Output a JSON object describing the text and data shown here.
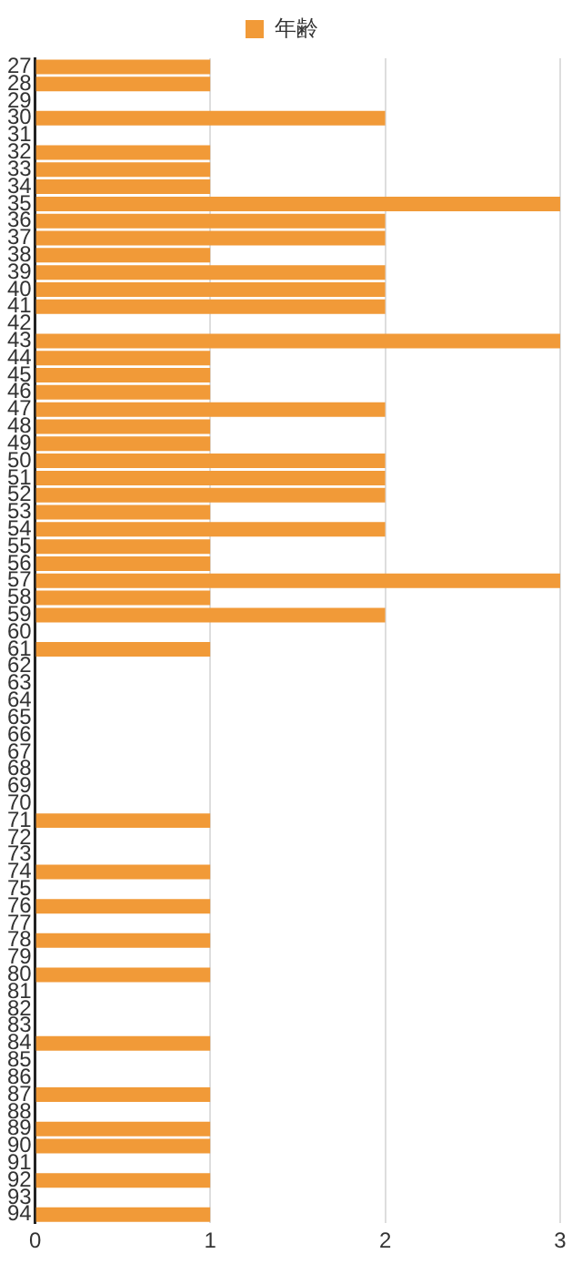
{
  "chart_data": {
    "type": "bar",
    "orientation": "horizontal",
    "categories": [
      "27",
      "28",
      "29",
      "30",
      "31",
      "32",
      "33",
      "34",
      "35",
      "36",
      "37",
      "38",
      "39",
      "40",
      "41",
      "42",
      "43",
      "44",
      "45",
      "46",
      "47",
      "48",
      "49",
      "50",
      "51",
      "52",
      "53",
      "54",
      "55",
      "56",
      "57",
      "58",
      "59",
      "60",
      "61",
      "62",
      "63",
      "64",
      "65",
      "66",
      "67",
      "68",
      "69",
      "70",
      "71",
      "72",
      "73",
      "74",
      "75",
      "76",
      "77",
      "78",
      "79",
      "80",
      "81",
      "82",
      "83",
      "84",
      "85",
      "86",
      "87",
      "88",
      "89",
      "90",
      "91",
      "92",
      "93",
      "94"
    ],
    "series": [
      {
        "name": "年齢",
        "color": "#f19a38",
        "values": [
          1,
          1,
          0,
          2,
          0,
          1,
          1,
          1,
          3,
          2,
          2,
          1,
          2,
          2,
          2,
          0,
          3,
          1,
          1,
          1,
          2,
          1,
          1,
          2,
          2,
          2,
          1,
          2,
          1,
          1,
          3,
          1,
          2,
          0,
          1,
          0,
          0,
          0,
          0,
          0,
          0,
          0,
          0,
          0,
          1,
          0,
          0,
          1,
          0,
          1,
          0,
          1,
          0,
          1,
          0,
          0,
          0,
          1,
          0,
          0,
          1,
          0,
          1,
          1,
          0,
          1,
          0,
          1
        ]
      }
    ],
    "xlim": [
      0,
      3
    ],
    "xticks": [
      0,
      1,
      2,
      3
    ],
    "grid": "x",
    "legend": "top"
  }
}
